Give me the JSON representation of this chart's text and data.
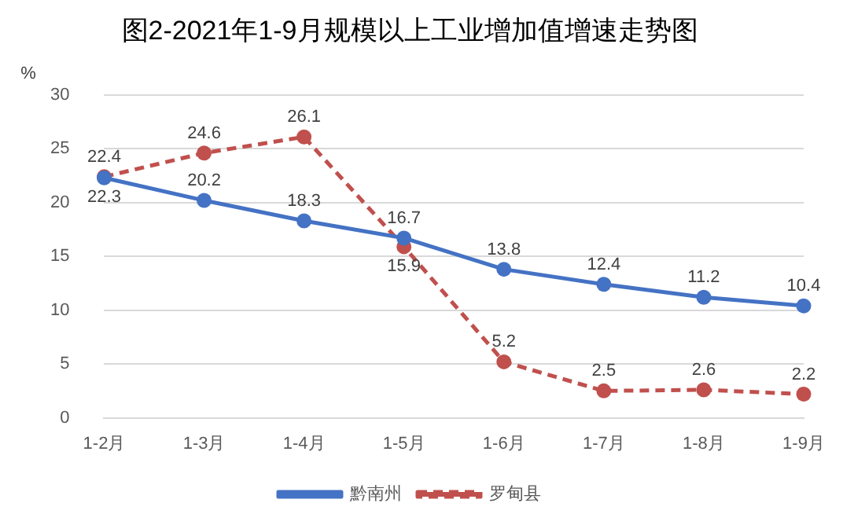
{
  "chart_data": {
    "type": "line",
    "title": "图2-2021年1-9月规模以上工业增加值增速走势图",
    "ylabel": "%",
    "categories": [
      "1-2月",
      "1-3月",
      "1-4月",
      "1-5月",
      "1-6月",
      "1-7月",
      "1-8月",
      "1-9月"
    ],
    "series": [
      {
        "name": "黔南州",
        "color": "#4472c4",
        "line_style": "solid",
        "values": [
          22.3,
          20.2,
          18.3,
          16.7,
          13.8,
          12.4,
          11.2,
          10.4
        ]
      },
      {
        "name": "罗甸县",
        "color": "#c0504d",
        "line_style": "dashed",
        "values": [
          22.4,
          24.6,
          26.1,
          15.9,
          5.2,
          2.5,
          2.6,
          2.2
        ]
      }
    ],
    "ylim": [
      0,
      30
    ],
    "yticks": [
      0,
      5,
      10,
      15,
      20,
      25,
      30
    ],
    "grid": "y",
    "legend": "bottom",
    "marker": "circle",
    "data_labels": true
  }
}
